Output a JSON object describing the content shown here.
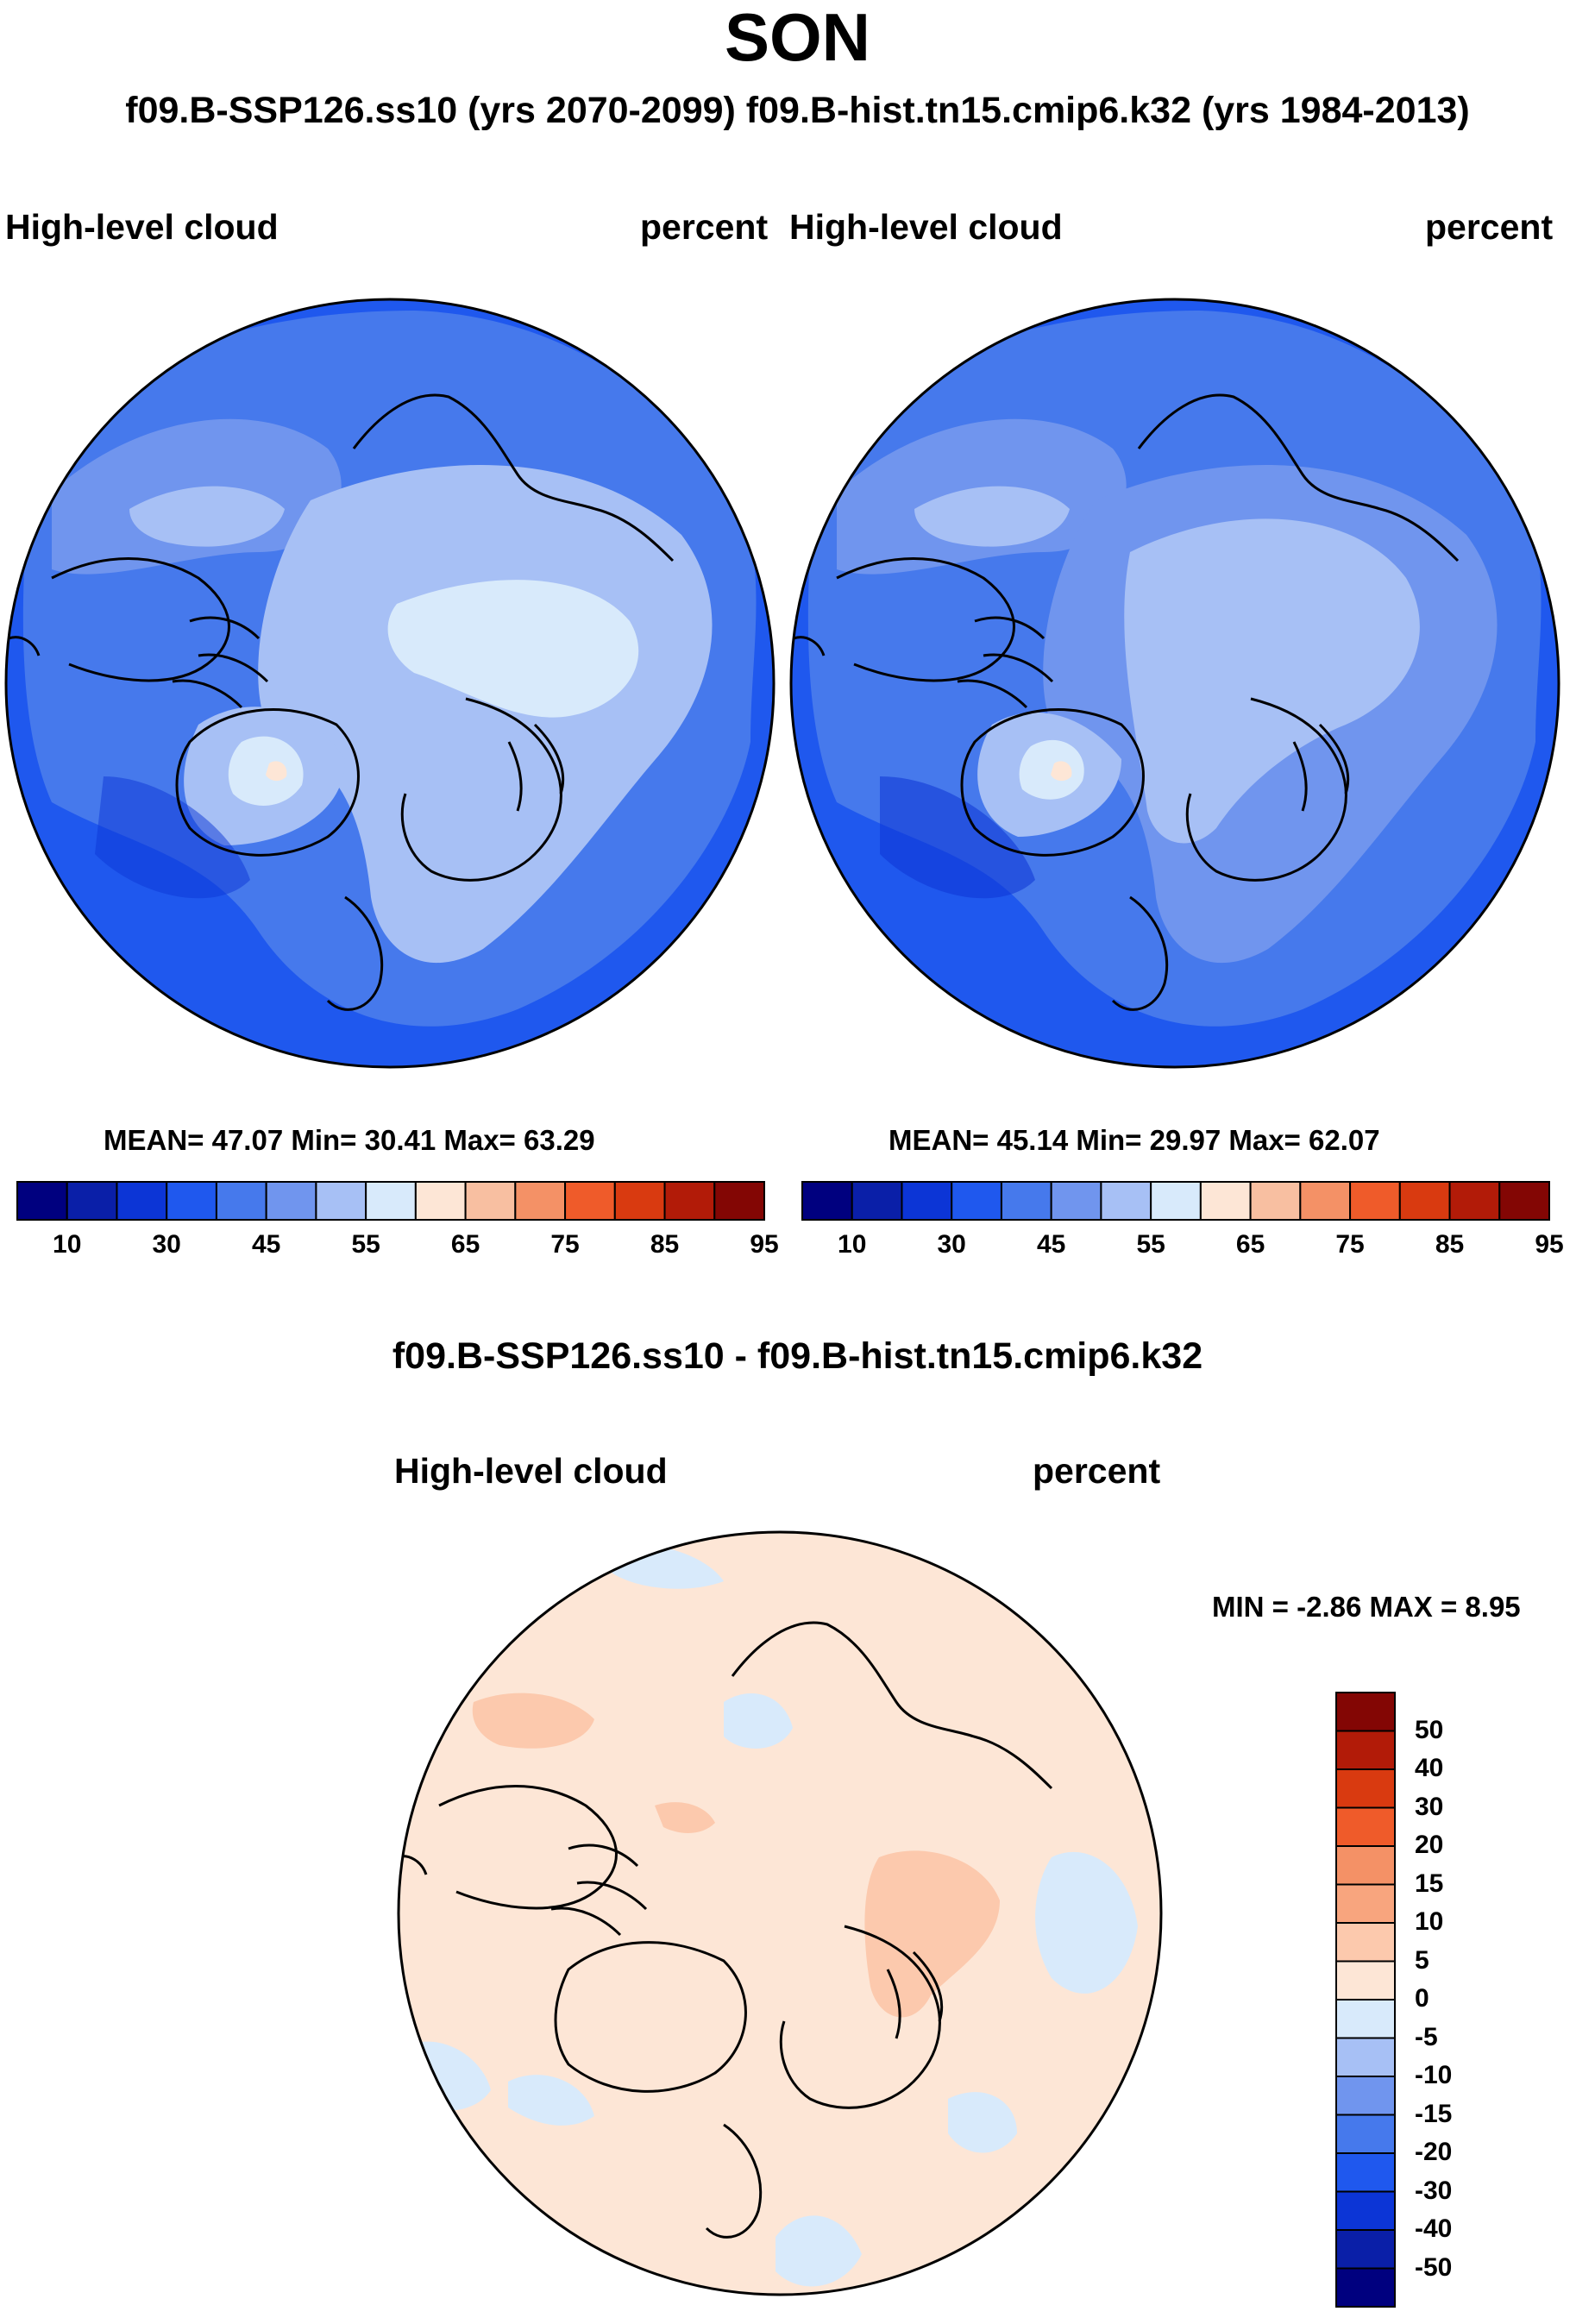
{
  "title": "SON",
  "subtitle": "f09.B-SSP126.ss10 (yrs 2070-2099)  f09.B-hist.tn15.cmip6.k32 (yrs 1984-2013)",
  "panels": [
    {
      "variable": "High-level cloud",
      "units": "percent",
      "stats": "MEAN=  47.07  Min=  30.41  Max=  63.29"
    },
    {
      "variable": "High-level cloud",
      "units": "percent",
      "stats": "MEAN=  45.14  Min=  29.97  Max=  62.07"
    }
  ],
  "colorbar": {
    "labels": [
      "10",
      "30",
      "45",
      "55",
      "65",
      "75",
      "85",
      "95"
    ],
    "colors": [
      "#00007f",
      "#0a1fa8",
      "#0c35d6",
      "#1f58ee",
      "#4679ec",
      "#7095ee",
      "#a7c0f5",
      "#d8eafb",
      "#fde6d6",
      "#f8bfa1",
      "#f49166",
      "#ef5b2a",
      "#d93a10",
      "#b21b08",
      "#830604"
    ]
  },
  "difference": {
    "title": "f09.B-SSP126.ss10 - f09.B-hist.tn15.cmip6.k32",
    "variable": "High-level cloud",
    "units": "percent",
    "range": "MIN =  -2.86 MAX =   8.95",
    "colorbar_labels": [
      "50",
      "40",
      "30",
      "20",
      "15",
      "10",
      "5",
      "0",
      "-5",
      "-10",
      "-15",
      "-20",
      "-30",
      "-40",
      "-50"
    ],
    "colorbar_colors": [
      "#830604",
      "#b21b08",
      "#d93a10",
      "#ef5b2a",
      "#f49166",
      "#f8a57e",
      "#fcc9ad",
      "#fde6d6",
      "#d8eafb",
      "#a7c0f5",
      "#7095ee",
      "#4679ec",
      "#1f58ee",
      "#0c35d6",
      "#0a1fa8",
      "#00007f"
    ]
  }
}
